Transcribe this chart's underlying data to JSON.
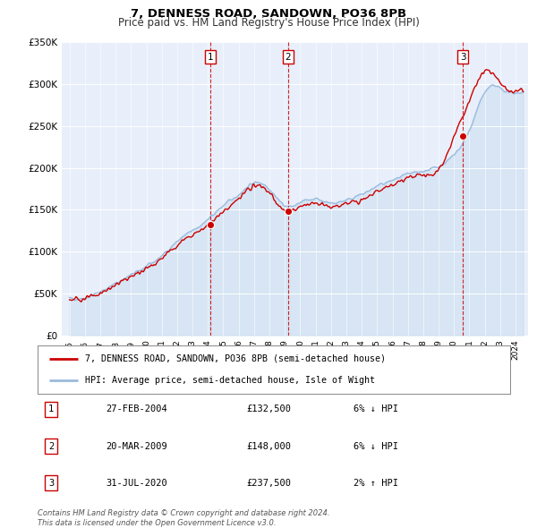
{
  "title": "7, DENNESS ROAD, SANDOWN, PO36 8PB",
  "subtitle": "Price paid vs. HM Land Registry's House Price Index (HPI)",
  "ylim": [
    0,
    350000
  ],
  "yticks": [
    0,
    50000,
    100000,
    150000,
    200000,
    250000,
    300000,
    350000
  ],
  "ytick_labels": [
    "£0",
    "£50K",
    "£100K",
    "£150K",
    "£200K",
    "£250K",
    "£300K",
    "£350K"
  ],
  "plot_bg_color": "#e8effa",
  "hpi_color": "#99bbdd",
  "hpi_fill_color": "#c8dcf0",
  "price_color": "#cc0000",
  "vline_color": "#cc0000",
  "transactions": [
    {
      "num": 1,
      "date_label": "27-FEB-2004",
      "x": 2004.15,
      "price": 132500,
      "pct": "6%",
      "dir": "↓",
      "label_price": "£132,500"
    },
    {
      "num": 2,
      "date_label": "20-MAR-2009",
      "x": 2009.22,
      "price": 148000,
      "pct": "6%",
      "dir": "↓",
      "label_price": "£148,000"
    },
    {
      "num": 3,
      "date_label": "31-JUL-2020",
      "x": 2020.58,
      "price": 237500,
      "pct": "2%",
      "dir": "↑",
      "label_price": "£237,500"
    }
  ],
  "legend_entries": [
    "7, DENNESS ROAD, SANDOWN, PO36 8PB (semi-detached house)",
    "HPI: Average price, semi-detached house, Isle of Wight"
  ],
  "footer_text": "Contains HM Land Registry data © Crown copyright and database right 2024.\nThis data is licensed under the Open Government Licence v3.0.",
  "title_fontsize": 9.5,
  "subtitle_fontsize": 8.5,
  "grid_color": "#c8d4e8"
}
